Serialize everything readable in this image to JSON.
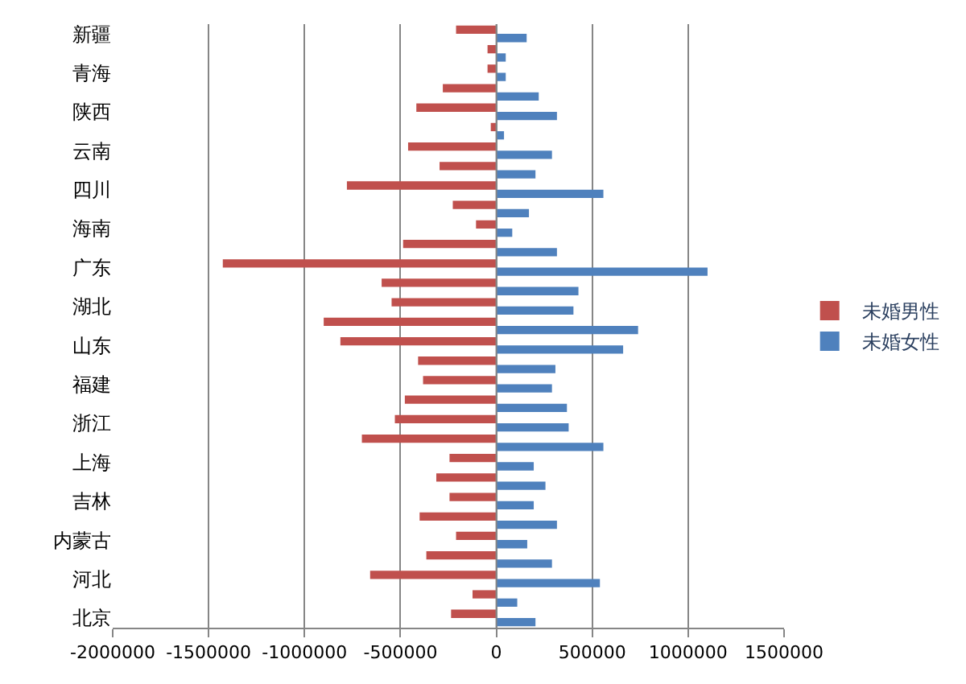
{
  "chart_data": {
    "type": "bar",
    "orientation": "horizontal",
    "categories": [
      "新疆",
      null,
      "青海",
      null,
      "陕西",
      null,
      "云南",
      null,
      "四川",
      null,
      "海南",
      null,
      "广东",
      null,
      "湖北",
      null,
      "山东",
      null,
      "福建",
      null,
      "浙江",
      null,
      "上海",
      null,
      "吉林",
      null,
      "内蒙古",
      null,
      "河北",
      null,
      "北京"
    ],
    "series": [
      {
        "name": "未婚男性",
        "color": "#c0504d",
        "values": [
          -210000,
          -46000,
          -46000,
          -279000,
          -417000,
          -29000,
          -460000,
          -296000,
          -779000,
          -227000,
          -106000,
          -486000,
          -1426000,
          -598000,
          -546000,
          -900000,
          -813000,
          -408000,
          -382000,
          -477000,
          -529000,
          -701000,
          -244000,
          -313000,
          -244000,
          -400000,
          -210000,
          -365000,
          -658000,
          -124000,
          -236000
        ]
      },
      {
        "name": "未婚女性",
        "color": "#4f81bd",
        "values": [
          158000,
          49000,
          49000,
          221000,
          316000,
          40000,
          290000,
          204000,
          558000,
          170000,
          83000,
          316000,
          1101000,
          428000,
          402000,
          739000,
          661000,
          308000,
          290000,
          368000,
          377000,
          558000,
          195000,
          256000,
          195000,
          316000,
          161000,
          290000,
          540000,
          109000,
          204000
        ]
      }
    ],
    "xlim": [
      -2000000,
      1500000
    ],
    "xticks": [
      -2000000,
      -1500000,
      -1000000,
      -500000,
      0,
      500000,
      1000000,
      1500000
    ],
    "grid": "x",
    "legend": "right"
  }
}
